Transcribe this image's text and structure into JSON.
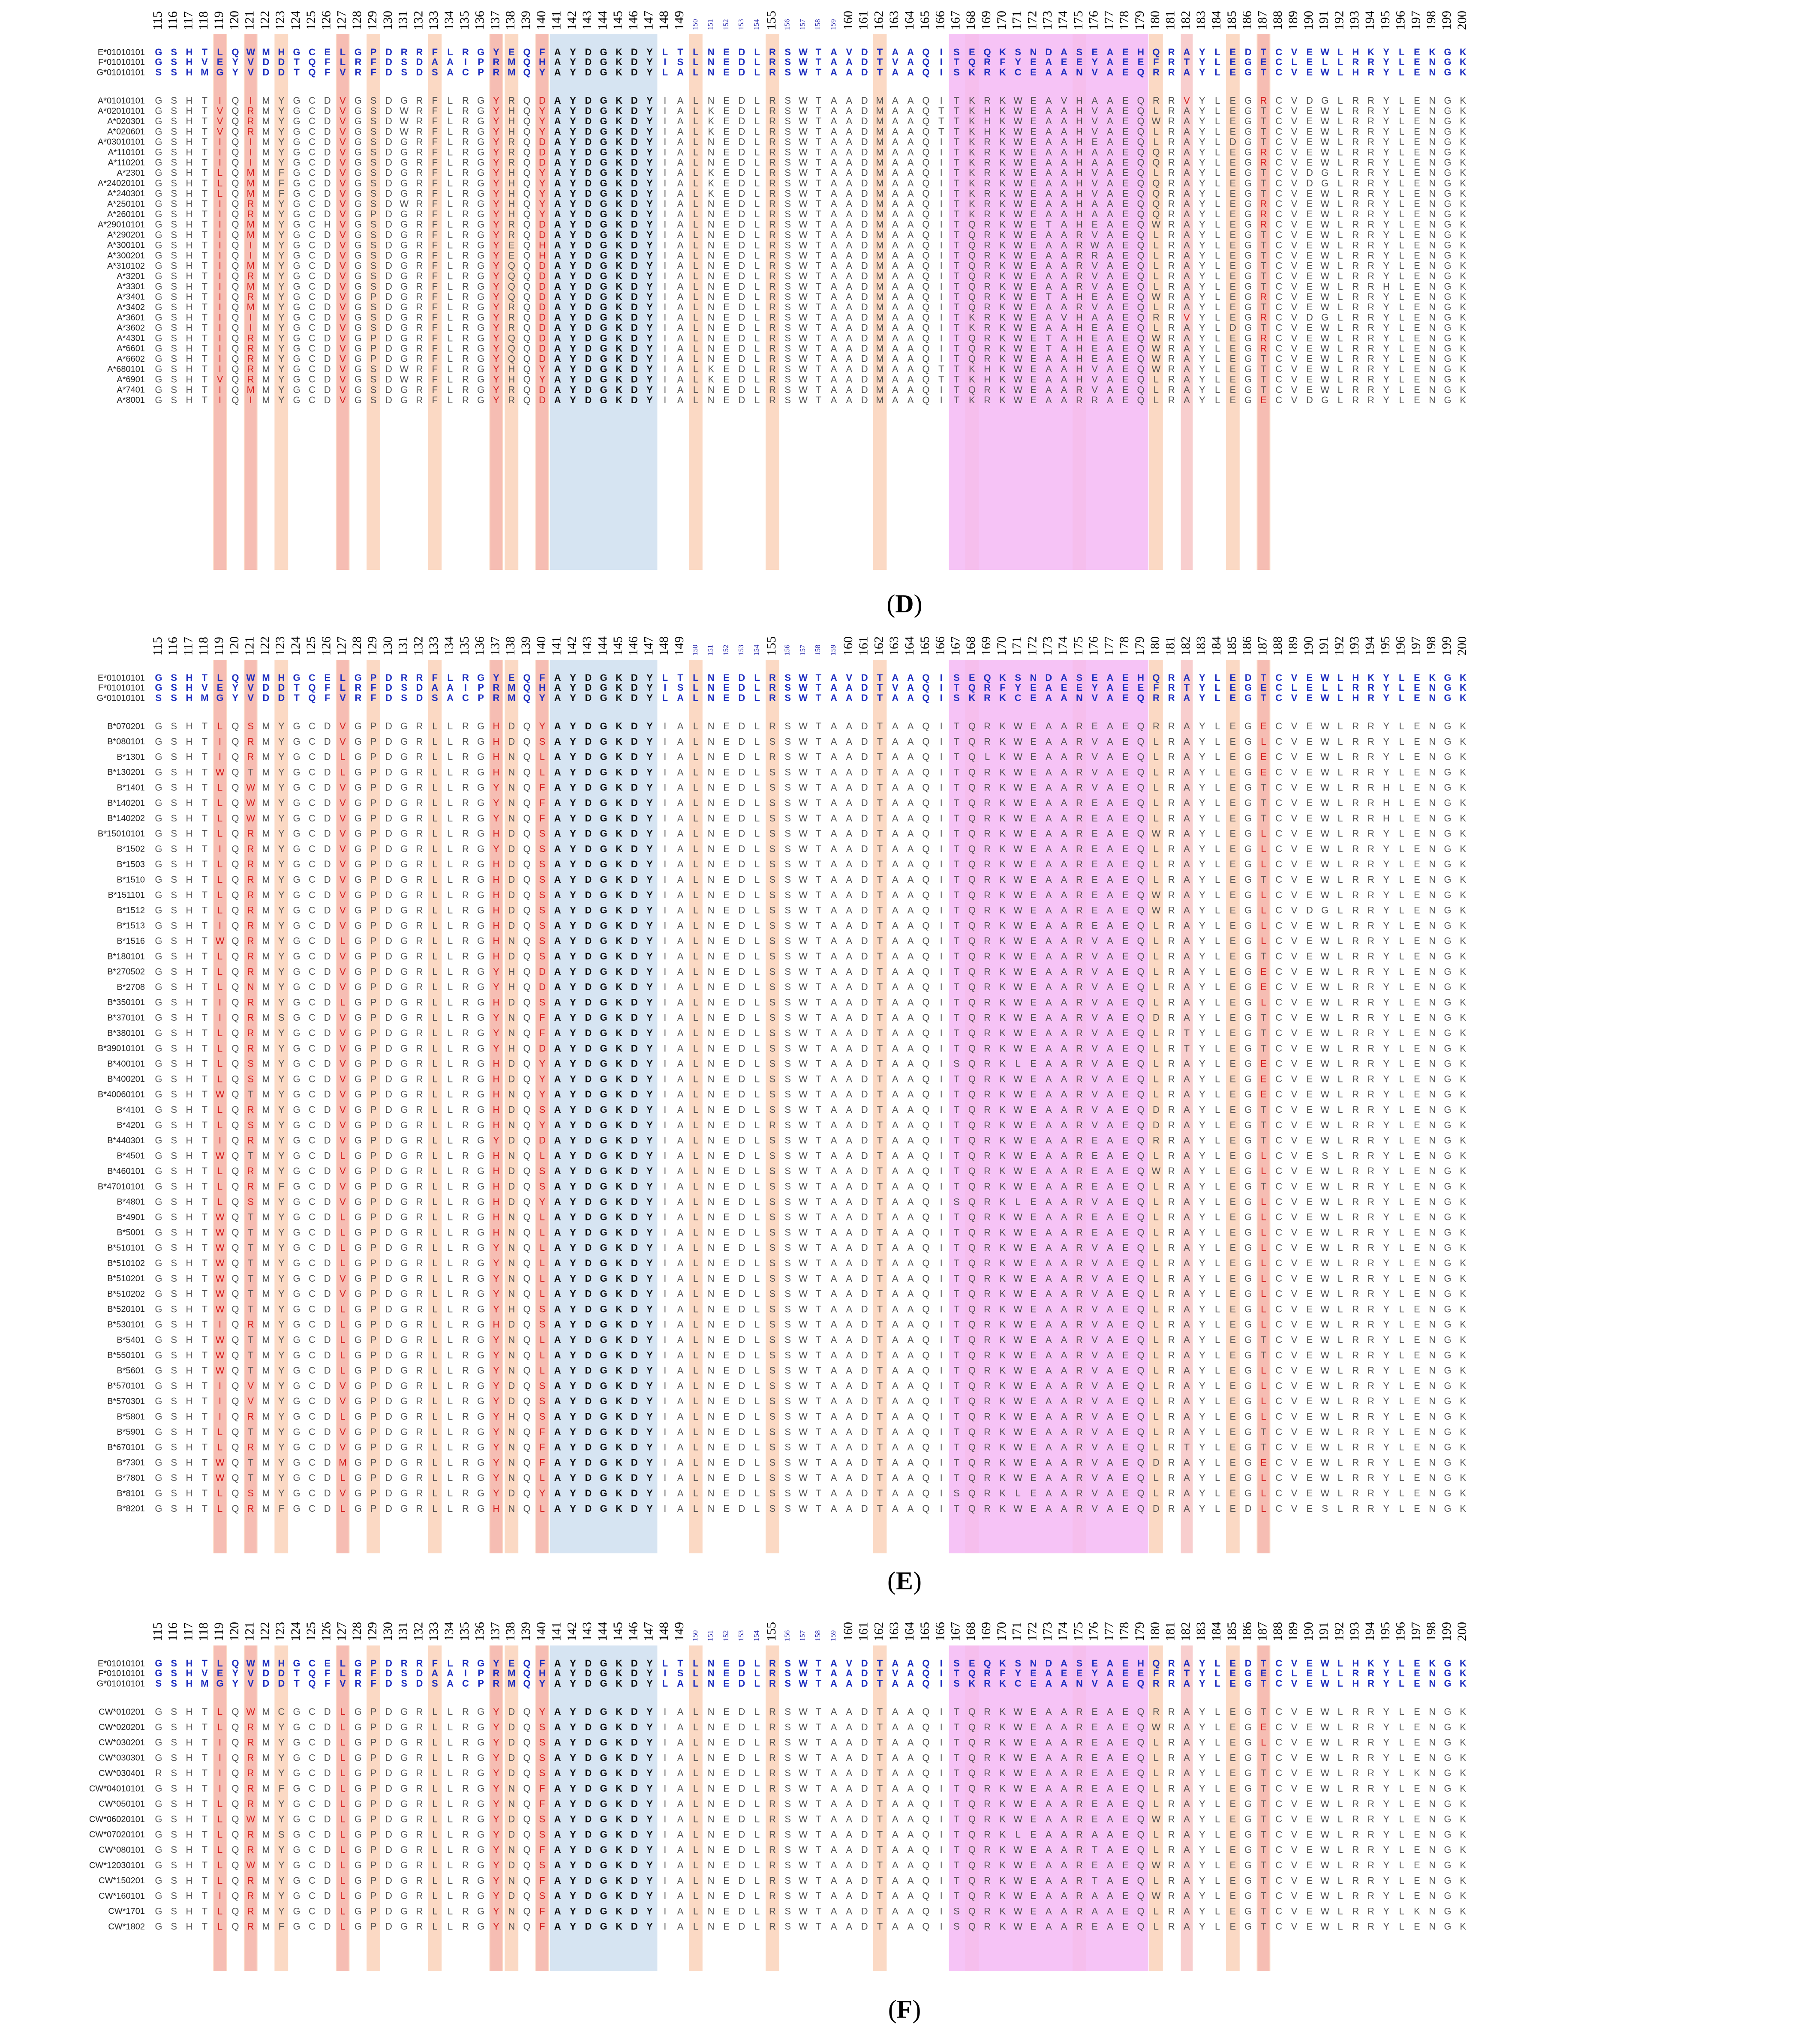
{
  "figure_caption": "Multiple sequence alignment of HLA class I alpha-2 domain residues (positions 115-200) for HLA-E, -F, -G and classical HLA-A, -B, -C alleles",
  "positions": [
    115,
    116,
    117,
    118,
    119,
    120,
    121,
    122,
    123,
    124,
    125,
    126,
    127,
    128,
    129,
    130,
    131,
    132,
    133,
    134,
    135,
    136,
    137,
    138,
    139,
    140,
    141,
    142,
    143,
    144,
    145,
    146,
    147,
    148,
    149,
    150,
    151,
    152,
    153,
    154,
    155,
    156,
    157,
    158,
    159,
    160,
    161,
    162,
    163,
    164,
    165,
    166,
    167,
    168,
    169,
    170,
    171,
    172,
    173,
    174,
    175,
    176,
    177,
    178,
    179,
    180,
    181,
    182,
    183,
    184,
    185,
    186,
    187,
    188,
    189,
    190,
    191,
    192,
    193,
    194,
    195,
    196,
    197,
    198,
    199,
    200
  ],
  "colors": {
    "reference_text": "#1f2fbf",
    "allele_text": "#555555",
    "small_position_text": "#1a1aa6",
    "peach_column": "#fbd9c4",
    "red_cell": "#f3a6a6",
    "blue_block": "#d6e4f2",
    "pink_block": "#f4b8f4",
    "pink_strong": "#ec9cec",
    "red_text": "#d42020"
  },
  "references": [
    {
      "name": "E*01010101",
      "seq": "GSHTLQWMHGCELGPDRRFLRGYEQFAYDGKDYLTLNEDLRSWTAVDTAAQISEQKSNDASEAEHQRAYLEDTCVEWLHKYLEKGK"
    },
    {
      "name": "F*01010101",
      "seq": "GSHVEYVDDTQFLRFDSDAAIPRMQHAYDGKDYISLNEDLRSWTAADTVAQITQRFYEAEEYAEEFRTYLEGECLELLRRYLENGK"
    },
    {
      "name": "G*01010101",
      "seq": "SSHMGYVDDTQFVRFDSDSACPRMQYAYDGKDYLALNEDLRSWTAADTAAQISKRKCEAANVAEQRRAYLEGTCVEWLHRYLENGK"
    }
  ],
  "panels": [
    {
      "label": "D",
      "caption_left": "(",
      "caption_right": ")",
      "alleles": [
        {
          "name": "A*01010101",
          "seq": "GSHTIQIMYGCDVGSDGRFLRGYRQDAYDGKDYIALNEDLRSWTAADMAAQITKRKWEAVHAAEQRRVYLEGRCVDGLRRYLENGK"
        },
        {
          "name": "A*02010101",
          "seq": "GSHTVQRMYGCDVGSDWRFLRGYHQYAYDGKDYIALKEDLRSWTAADMAAQTTKHKWEAAHVAEQLRAYLEGTCVEWLRRYLENGK"
        },
        {
          "name": "A*020301",
          "seq": "GSHTVQRMYGCDVGSDWRFLRGYHQYAYDGKDYIALKEDLRSWTAADMAAQTTKHKWEAAHVAEQWRAYLEGTCVEWLRRYLENGK"
        },
        {
          "name": "A*020601",
          "seq": "GSHTVQRMYGCDVGSDWRFLRGYHQYAYDGKDYIALKEDLRSWTAADMAAQTTKHKWEAAHVAEQLRAYLEGTCVEWLRRYLENGK"
        },
        {
          "name": "A*03010101",
          "seq": "GSHTIQIMYGCDVGSDGRFLRGYRQDAYDGKDYIALNEDLRSWTAADMAAQITKRKWEAAHEAEQLRAYLDGTCVEWLRRYLENGK"
        },
        {
          "name": "A*110101",
          "seq": "GSHTIQIMYGCDVGSDGRFLRGYRQDAYDGKDYIALNEDLRSWTAADMAAQITKRKWEAAHAAEQQRAYLEGRCVEWLRRYLENGK"
        },
        {
          "name": "A*110201",
          "seq": "GSHTIQIMYGCDVGSDGRFLRGYRQDAYDGKDYIALNEDLRSWTAADMAAQITKRKWEAAHAAEQQRAYLEGRCVEWLRRYLENGK"
        },
        {
          "name": "A*2301",
          "seq": "GSHTLQMMFGCDVGSDGRFLRGYHQYAYDGKDYIALKEDLRSWTAADMAAQITKRKWEAAHVAEQLRAYLEGTCVDGLRRYLENGK"
        },
        {
          "name": "A*24020101",
          "seq": "GSHTLQMMFGCDVGSDGRFLRGYHQYAYDGKDYIALKEDLRSWTAADMAAQITKRKWEAAHVAEQQRAYLEGTCVDGLRRYLENGK"
        },
        {
          "name": "A*240301",
          "seq": "GSHTLQMMFGCDVGSDGRFLRGYHQYAYDGKDYIALKEDLRSWTAADMAAQITKRKWEAAHVAEQQRAYLEGTCVEWLRRYLENGK"
        },
        {
          "name": "A*250101",
          "seq": "GSHTIQRMYGCDVGSDWRFLRGYHQYAYDGKDYIALNEDLRSWTAADMAAQITKRKWEAAHAAEQQRAYLEGRCVEWLRRYLENGK"
        },
        {
          "name": "A*260101",
          "seq": "GSHTIQRMYGCDVGPDGRFLRGYHQYAYDGKDYIALNEDLRSWTAADMAAQITKRKWEAAHAAEQQRAYLEGRCVEWLRRYLENGK"
        },
        {
          "name": "A*29010101",
          "seq": "GSHTIQMMYGCHVGSDGRFLRGYRQDAYDGKDYIALNEDLRSWTAADMAAQITQRKWETAHEAEQWRAYLEGRCVEWLRRYLENGK"
        },
        {
          "name": "A*290201",
          "seq": "GSHTIQMMYGCDVGSDGRFLRGYRQDAYDGKDYIALNEDLRSWTAADMAAQITQRKWEAARVAEQLRAYLEGTCVEWLRRYLENGK"
        },
        {
          "name": "A*300101",
          "seq": "GSHTIQIMYGCDVGSDGRFLRGYEQHAYDGKDYIALNEDLRSWTAADMAAQITQRKWEAARWAEQLRAYLEGTCVEWLRRYLENGK"
        },
        {
          "name": "A*300201",
          "seq": "GSHTIQIMYGCDVGSDGRFLRGYEQHAYDGKDYIALNEDLRSWTAADMAAQITQRKWEAARRAEQLRAYLEGTCVEWLRRYLENGK"
        },
        {
          "name": "A*310102",
          "seq": "GSHTIQMMYGCDVGSDGRFLRGYQQDAYDGKDYIALNEDLRSWTAADMAAQITQRKWEAARVAEQLRAYLEGTCVEWLRRYLENGK"
        },
        {
          "name": "A*3201",
          "seq": "GSHTIQRMYGCDVGSDGRFLRGYQQDAYDGKDYIALNEDLRSWTAADMAAQITQRKWEAARVAEQLRAYLEGTCVEWLRRYLENGK"
        },
        {
          "name": "A*3301",
          "seq": "GSHTIQMMYGCDVGSDGRFLRGYQQDAYDGKDYIALNEDLRSWTAADMAAQITQRKWEAARVAEQLRAYLEGTCVEWLRRHLENGK"
        },
        {
          "name": "A*3401",
          "seq": "GSHTIQRMYGCDVGPDGRFLRGYQQDAYDGKDYIALNEDLRSWTAADMAAQITQRKWETAHEAEQWRAYLEGRCVEWLRRYLENGK"
        },
        {
          "name": "A*3402",
          "seq": "GSHTIQMMYGCDVGSDGRFLRGYRQDAYDGKDYIALNEDLRSWTAADMAAQITQRKWEAARVAEQLRAYLEGTCVEWLRRYLENGK"
        },
        {
          "name": "A*3601",
          "seq": "GSHTIQIMYGCDVGSDGRFLRGYRQDAYDGKDYIALNEDLRSWTAADMAAQITKRKWEAVHAAEQRRVYLEGRCVDGLRRYLENGK"
        },
        {
          "name": "A*3602",
          "seq": "GSHTIQIMYGCDVGSDGRFLRGYRQDAYDGKDYIALNEDLRSWTAADMAAQITKRKWEAAHEAEQLRAYLDGTCVEWLRRYLENGK"
        },
        {
          "name": "A*4301",
          "seq": "GSHTIQRMYGCDVGPDGRFLRGYQQDAYDGKDYIALNEDLRSWTAADMAAQITQRKWETAHEAEQWRAYLEGRCVEWLRRYLENGK"
        },
        {
          "name": "A*6601",
          "seq": "GSHTIQRMYGCDVGPDGRFLRGYQQDAYDGKDYIALNEDLRSWTAADMAAQITQRKWETAHEAEQWRAYLEGRCVEWLRRYLENGK"
        },
        {
          "name": "A*6602",
          "seq": "GSHTIQRMYGCDVGPDGRFLRGYQQDAYDGKDYIALNEDLRSWTAADMAAQITQRKWEAAHEAEQWRAYLEGTCVEWLRRYLENGK"
        },
        {
          "name": "A*680101",
          "seq": "GSHTIQRMYGCDVGSDWRFLRGYHQYAYDGKDYIALKEDLRSWTAADMAAQTTKHKWEAAHVAEQWRAYLEGTCVEWLRRYLENGK"
        },
        {
          "name": "A*6901",
          "seq": "GSHTVQRMYGCDVGSDWRFLRGYHQYAYDGKDYIALKEDLRSWTAADMAAQTTKHKWEAAHVAEQLRAYLEGTCVEWLRRYLENGK"
        },
        {
          "name": "A*7401",
          "seq": "GSHTIQMMYGCDVGSDGRFLRGYRQDAYDGKDYIALNEDLRSWTAADMAAQITQRKWEAARVAEQLRAYLEGTCVEWLRRYLENGK"
        },
        {
          "name": "A*8001",
          "seq": "GSHTIQIMYGCDVGSDGRFLRGYRQDAYDGKDYIALNEDLRSWTAADMAAQITKRKWEAARRAEQLRAYLEGECVDGLRRYLENGK"
        }
      ]
    },
    {
      "label": "E",
      "caption_left": "(",
      "caption_right": ")",
      "alleles": [
        {
          "name": "B*070201",
          "seq": "GSHTLQSMYGCDVGPDGRLLRGHDQYAYDGKDYIALNEDLRSWTAADTAAQITQRKWEAAREAEQRRAYLEGECVEWLRRYLENGK"
        },
        {
          "name": "B*080101",
          "seq": "GSHTIQRMYGCDVGPDGRLLRGHDQSAYDGKDYIALNEDLSSWTAADTAAQITQRKWEAARVAEQLRAYLEGLCVEWLRRYLENGK"
        },
        {
          "name": "B*1301",
          "seq": "GSHTIQRMYGCDLGPDGRLLRGHNQLAYDGKDYIALNEDLRSWTAADTAAQITQLKWEAARVAEQLRAYLEGECVEWLRRYLENGK"
        },
        {
          "name": "B*130201",
          "seq": "GSHTWQTMYGCDLGPDGRLLRGHNQLAYDGKDYIALNEDLSSWTAADTAAQITQRKWEAARVAEQLRAYLEGECVEWLRRYLENGK"
        },
        {
          "name": "B*1401",
          "seq": "GSHTLQWMYGCDVGPDGRLLRGYNQFAYDGKDYIALNEDLSSWTAADTAAQITQRKWEAARVAEQLRAYLEGTCVEWLRRHLENGK"
        },
        {
          "name": "B*140201",
          "seq": "GSHTLQWMYGCDVGPDGRLLRGYNQFAYDGKDYIALNEDLSSWTAADTAAQITQRKWEAAREAEQLRAYLEGTCVEWLRRHLENGK"
        },
        {
          "name": "B*140202",
          "seq": "GSHTLQWMYGCDVGPDGRLLRGYNQFAYDGKDYIALNEDLSSWTAADTAAQITQRKWEAAREAEQLRAYLEGTCVEWLRRHLENGK"
        },
        {
          "name": "B*15010101",
          "seq": "GSHTLQRMYGCDVGPDGRLLRGHDQSAYDGKDYIALNEDLSSWTAADTAAQITQRKWEAAREAEQWRAYLEGLCVEWLRRYLENGK"
        },
        {
          "name": "B*1502",
          "seq": "GSHTIQRMYGCDVGPDGRLLRGYDQSAYDGKDYIALNEDLSSWTAADTAAQITQRKWEAAREAEQLRAYLEGLCVEWLRRYLENGK"
        },
        {
          "name": "B*1503",
          "seq": "GSHTLQRMYGCDVGPDGRLLRGHDQSAYDGKDYIALNEDLSSWTAADTAAQITQRKWEAAREAEQLRAYLEGLCVEWLRRYLENGK"
        },
        {
          "name": "B*1510",
          "seq": "GSHTLQRMYGCDVGPDGRLLRGHDQSAYDGKDYIALNEDLSSWTAADTAAQITQRKWEAAREAEQLRAYLEGTCVEWLRRYLENGK"
        },
        {
          "name": "B*151101",
          "seq": "GSHTLQRMYGCDVGPDGRLLRGHDQSAYDGKDYIALNEDLSSWTAADTAAQITQRKWEAAREAEQWRAYLEGLCVEWLRRYLENGK"
        },
        {
          "name": "B*1512",
          "seq": "GSHTLQRMYGCDVGPDGRLLRGHDQSAYDGKDYIALNEDLSSWTAADTAAQITQRKWEAAREAEQWRAYLEGLCVDGLRRYLENGK"
        },
        {
          "name": "B*1513",
          "seq": "GSHTIQRMYGCDVGPDGRLLRGHDQSAYDGKDYIALNEDLSSWTAADTAAQITQRKWEAAREAEQLRAYLEGLCVEWLRRYLENGK"
        },
        {
          "name": "B*1516",
          "seq": "GSHTWQRMYGCDLGPDGRLLRGHNQSAYDGKDYIALNEDLSSWTAADTAAQITQRKWEAARVAEQLRAYLEGLCVEWLRRYLENGK"
        },
        {
          "name": "B*180101",
          "seq": "GSHTLQRMYGCDVGPDGRLLRGHDQSAYDGKDYIALNEDLSSWTAADTAAQITQRKWEAARVAEQLRAYLEGTCVEWLRRYLENGK"
        },
        {
          "name": "B*270502",
          "seq": "GSHTLQRMYGCDVGPDGRLLRGYHQDAYDGKDYIALNEDLSSWTAADTAAQITQRKWEAARVAEQLRAYLEGECVEWLRRYLENGK"
        },
        {
          "name": "B*2708",
          "seq": "GSHTLQNMYGCDVGPDGRLLRGYHQDAYDGKDYIALNEDLSSWTAADTAAQITQRKWEAARVAEQLRAYLEGECVEWLRRYLENGK"
        },
        {
          "name": "B*350101",
          "seq": "GSHTIQRMYGCDLGPDGRLLRGHDQSAYDGKDYIALNEDLSSWTAADTAAQITQRKWEAARVAEQLRAYLEGLCVEWLRRYLENGK"
        },
        {
          "name": "B*370101",
          "seq": "GSHTIQRMSGCDVGPDGRLLRGYNQFAYDGKDYIALNEDLSSWTAADTAAQITQRKWEAARVAEQDRAYLEGTCVEWLRRYLENGK"
        },
        {
          "name": "B*380101",
          "seq": "GSHTLQRMYGCDVGPDGRLLRGYNQFAYDGKDYIALNEDLSSWTAADTAAQITQRKWEAARVAEQLRTYLEGTCVEWLRRYLENGK"
        },
        {
          "name": "B*39010101",
          "seq": "GSHTLQRMYGCDVGPDGRLLRGYHQDAYDGKDYIALNEDLSSWTAADTAAQITQRKWEAARVAEQLRTYLEGTCVEWLRRYLENGK"
        },
        {
          "name": "B*400101",
          "seq": "GSHTLQSMYGCDVGPDGRLLRGHDQYAYDGKDYIALNEDLSSWTAADTAAQISQRKLEAARVAEQLRAYLEGECVEWLRRYLENGK"
        },
        {
          "name": "B*400201",
          "seq": "GSHTLQSMYGCDVGPDGRLLRGHDQYAYDGKDYIALNEDLSSWTAADTAAQITQRKWEAARVAEQLRAYLEGECVEWLRRYLENGK"
        },
        {
          "name": "B*40060101",
          "seq": "GSHTWQTMYGCDVGPDGRLLRGHNQYAYDGKDYIALNEDLSSWTAADTAAQITQRKWEAARVAEQLRAYLEGECVEWLRRYLENGK"
        },
        {
          "name": "B*4101",
          "seq": "GSHTLQRMYGCDVGPDGRLLRGHDQSAYDGKDYIALNEDLSSWTAADTAAQITQRKWEAARVAEQDRAYLEGTCVEWLRRYLENGK"
        },
        {
          "name": "B*4201",
          "seq": "GSHTLQSMYGCDVGPDGRLLRGHNQYAYDGKDYIALNEDLRSWTAADTAAQITQRKWEAARVAEQDRAYLEGTCVEWLRRYLENGK"
        },
        {
          "name": "B*440301",
          "seq": "GSHTIQRMYGCDVGPDGRLLRGYDQDAYDGKDYIALNEDLSSWTAADTAAQITQRKWEAAREAEQRRAYLEGTCVEWLRRYLENGK"
        },
        {
          "name": "B*4501",
          "seq": "GSHTWQTMYGCDLGPDGRLLRGHNQLAYDGKDYIALNEDLSSWTAADTAAQITQRKWEAAREAEQLRAYLEGLCVESLRRYLENGK"
        },
        {
          "name": "B*460101",
          "seq": "GSHTLQRMYGCDVGPDGRLLRGHDQSAYDGKDYIALNEDLSSWTAADTAAQITQRKWEAAREAEQWRAYLEGLCVEWLRRYLENGK"
        },
        {
          "name": "B*47010101",
          "seq": "GSHTLQRMFGCDVGPDGRLLRGHDQSAYDGKDYIALNEDLSSWTAADTAAQITQRKWEAAREAEQLRAYLEGTCVEWLRRYLENGK"
        },
        {
          "name": "B*4801",
          "seq": "GSHTLQSMYGCDVGPDGRLLRGHDQYAYDGKDYIALNEDLSSWTAADTAAQISQRKLEAARVAEQLRAYLEGLCVEWLRRYLENGK"
        },
        {
          "name": "B*4901",
          "seq": "GSHTWQTMYGCDLGPDGRLLRGHNQLAYDGKDYIALNEDLSSWTAADTAAQITQRKWEAAREAEQLRAYLEGLCVEWLRRYLENGK"
        },
        {
          "name": "B*5001",
          "seq": "GSHTWQTMYGCDLGPDGRLLRGHNQLAYDGKDYIALNEDLSSWTAADTAAQITQRKWEAAREAEQLRAYLEGLCVEWLRRYLENGK"
        },
        {
          "name": "B*510101",
          "seq": "GSHTWQTMYGCDLGPDGRLLRGYNQLAYDGKDYIALNEDLSSWTAADTAAQITQRKWEAARVAEQLRAYLEGLCVEWLRRYLENGK"
        },
        {
          "name": "B*510102",
          "seq": "GSHTWQTMYGCDLGPDGRLLRGYNQLAYDGKDYIALNEDLSSWTAADTAAQITQRKWEAARVAEQLRAYLEGLCVEWLRRYLENGK"
        },
        {
          "name": "B*510201",
          "seq": "GSHTWQTMYGCDVGPDGRLLRGYNQLAYDGKDYIALNEDLSSWTAADTAAQITQRKWEAARVAEQLRAYLEGLCVEWLRRYLENGK"
        },
        {
          "name": "B*510202",
          "seq": "GSHTWQTMYGCDVGPDGRLLRGYNQLAYDGKDYIALNEDLSSWTAADTAAQITQRKWEAARVAEQLRAYLEGLCVEWLRRYLENGK"
        },
        {
          "name": "B*520101",
          "seq": "GSHTWQTMYGCDLGPDGRLLRGYHQSAYDGKDYIALNEDLSSWTAADTAAQITQRKWEAARVAEQLRAYLEGLCVEWLRRYLENGK"
        },
        {
          "name": "B*530101",
          "seq": "GSHTIQRMYGCDLGPDGRLLRGHDQSAYDGKDYIALNEDLSSWTAADTAAQITQRKWEAARVAEQLRAYLEGLCVEWLRRYLENGK"
        },
        {
          "name": "B*5401",
          "seq": "GSHTWQTMYGCDLGPDGRLLRGYNQLAYDGKDYIALNEDLSSWTAADTAAQITQRKWEAARVAEQLRAYLEGTCVEWLRRYLENGK"
        },
        {
          "name": "B*550101",
          "seq": "GSHTWQTMYGCDLGPDGRLLRGYNQLAYDGKDYIALNEDLSSWTAADTAAQITQRKWEAARVAEQLRAYLEGTCVEWLRRYLENGK"
        },
        {
          "name": "B*5601",
          "seq": "GSHTWQTMYGCDLGPDGRLLRGYNQLAYDGKDYIALNEDLSSWTAADTAAQITQRKWEAARVAEQLRAYLEGLCVEWLRRYLENGK"
        },
        {
          "name": "B*570101",
          "seq": "GSHTIQVMYGCDVGPDGRLLRGYDQSAYDGKDYIALNEDLSSWTAADTAAQITQRKWEAARVAEQLRAYLEGLCVEWLRRYLENGK"
        },
        {
          "name": "B*570301",
          "seq": "GSHTIQVMYGCDVGPDGRLLRGYDQSAYDGKDYIALNEDLSSWTAADTAAQITQRKWEAARVAEQLRAYLEGLCVEWLRRYLENGK"
        },
        {
          "name": "B*5801",
          "seq": "GSHTIQRMYGCDLGPDGRLLRGYHQSAYDGKDYIALNEDLSSWTAADTAAQITQRKWEAARVAEQLRAYLEGLCVEWLRRYLENGK"
        },
        {
          "name": "B*5901",
          "seq": "GSHTLQTMYGCDVGPDGRLLRGYNQFAYDGKDYIALNEDLSSWTAADTAAQITQRKWEAARVAEQLRAYLEGTCVEWLRRYLENGK"
        },
        {
          "name": "B*670101",
          "seq": "GSHTLQRMYGCDVGPDGRLLRGYNQFAYDGKDYIALNEDLSSWTAADTAAQITQRKWEAARVAEQLRTYLEGTCVEWLRRYLENGK"
        },
        {
          "name": "B*7301",
          "seq": "GSHTWQTMYGCDMGPDGRLLRGYNQFAYDGKDYIALNEDLSSWTAADTAAQITQRKWEAARVAEQDRAYLEGECVEWLRRYLENGK"
        },
        {
          "name": "B*7801",
          "seq": "GSHTWQTMYGCDLGPDGRLLRGYNQLAYDGKDYIALNEDLSSWTAADTAAQITQRKWEAARVAEQLRAYLEGLCVEWLRRYLENGK"
        },
        {
          "name": "B*8101",
          "seq": "GSHTLQSMYGCDVGPDGRLLRGYDQYAYDGKDYIALNEDLSSWTAADTAAQISQRKLEAARVAEQLRAYLEGLCVEWLRRYLENGK"
        },
        {
          "name": "B*8201",
          "seq": "GSHTLQRMFGCDLGPDGRLLRGHNQLAYDGKDYIALNEDLSSWTAADTAAQITQRKWEAARVAEQDRAYLEDLCVESLRRYLENGK"
        }
      ]
    },
    {
      "label": "F",
      "caption_left": "(",
      "caption_right": ")",
      "alleles": [
        {
          "name": "CW*010201",
          "seq": "GSHTLQWMCGCDLGPDGRLLRGYDQYAYDGKDYIALNEDLRSWTAADTAAQITQRKWEAAREAEQRRAYLEGTCVEWLRRYLENGK"
        },
        {
          "name": "CW*020201",
          "seq": "GSHTLQRMYGCDLGPDGRLLRGYDQSAYDGKDYIALNEDLRSWTAADTAAQITQRKWEAAREAEQWRAYLEGECVEWLRRYLENGK"
        },
        {
          "name": "CW*030201",
          "seq": "GSHTIQRMYGCDLGPDGRLLRGYDQSAYDGKDYIALNEDLRSWTAADTAAQITQRKWEAAREAEQLRAYLEGLCVEWLRRYLENGK"
        },
        {
          "name": "CW*030301",
          "seq": "GSHTIQRMYGCDLGPDGRLLRGYDQSAYDGKDYIALNEDLRSWTAADTAAQITQRKWEAAREAEQLRAYLEGTCVEWLRRYLENGK"
        },
        {
          "name": "CW*030401",
          "seq": "RSHTIQRMYGCDLGPDGRLLRGYDQSAYDGKDYIALNEDLRSWTAADTAAQITQRKWEAAREAEQLRAYLEGTCVEWLRRYLKNGK"
        },
        {
          "name": "CW*04010101",
          "seq": "GSHTIQRMFGCDLGPDGRLLRGYNQFAYDGKDYIALNEDLRSWTAADTAAQITQRKWEAAREAEQLRAYLEGTCVEWLRRYLENGK"
        },
        {
          "name": "CW*050101",
          "seq": "GSHTLQRMYGCDLGPDGRLLRGYNQFAYDGKDYIALNEDLRSWTAADTAAQITQRKWEAAREAEQLRAYLEGTCVEWLRRYLENGK"
        },
        {
          "name": "CW*06020101",
          "seq": "GSHTLQWMYGCDLGPDGRLLRGYDQSAYDGKDYIALNEDLRSWTAADTAAQITQRKWEAAREAEQWRAYLEGTCVEWLRRYLENGK"
        },
        {
          "name": "CW*07020101",
          "seq": "GSHTLQRMSGCDLGPDGRLLRGYDQSAYDGKDYIALNEDLRSWTAADTAAQITQRKLEAARAAEQLRAYLEGTCVEWLRRYLENGK"
        },
        {
          "name": "CW*080101",
          "seq": "GSHTLQRMYGCDLGPDGRLLRGYNQFAYDGKDYIALNEDLRSWTAADTAAQITQRKWEAARTAEQLRAYLEGTCVEWLRRYLENGK"
        },
        {
          "name": "CW*12030101",
          "seq": "GSHTLQWMYGCDLGPDGRLLRGYDQSAYDGKDYIALNEDLRSWTAADTAAQITQRKWEAAREAEQWRAYLEGTCVEWLRRYLENGK"
        },
        {
          "name": "CW*150201",
          "seq": "GSHTLQRMYGCDLGPDGRLLRGYNQFAYDGKDYIALNEDLRSWTAADTAAQITQRKWEAARTAEQLRAYLEGTCVEWLRRYLENGK"
        },
        {
          "name": "CW*160101",
          "seq": "GSHTIQRMYGCDLGPDGRLLRGYDQSAYDGKDYIALNEDLRSWTAADTAAQITQRKWEAARAAEQWRAYLEGTCVEWLRRYLENGK"
        },
        {
          "name": "CW*1701",
          "seq": "GSHTLQRMYGCDLGPDGRLLRGYNQFAYDGKDYIALNEDLRSWTAADTAAQISQRKWEAARAAEQLRAYLEGTCVEWLRRYLKNGK"
        },
        {
          "name": "CW*1802",
          "seq": "GSHTLQRMFGCDLGPDGRLLRGYNQFAYDGKDYIALNEDLRSWTAADTAAQISQRKWEAAREAEQLRAYLEGTCVEWLRRYLENGK"
        }
      ]
    }
  ]
}
